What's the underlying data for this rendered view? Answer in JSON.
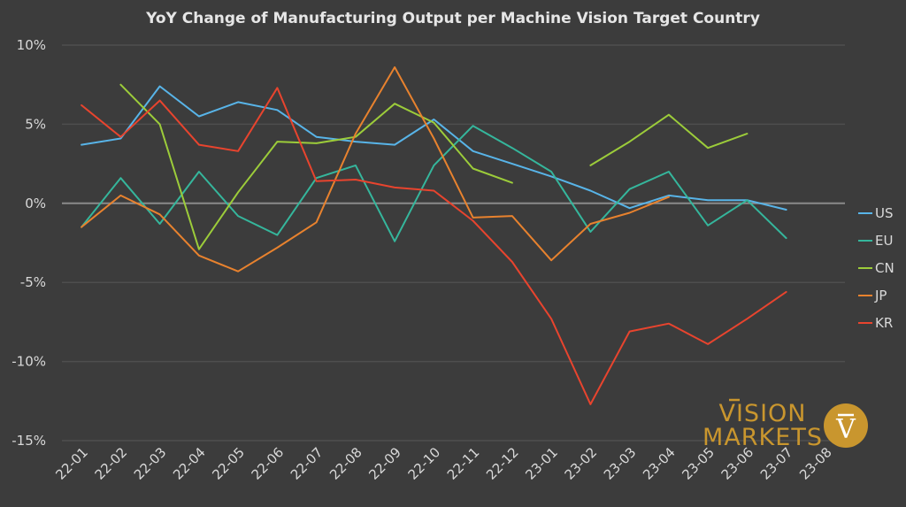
{
  "chart_data": {
    "type": "line",
    "title": "YoY Change of Manufacturing Output per Machine Vision Target Country",
    "xlabel": "",
    "ylabel": "",
    "ylim": [
      -15,
      10
    ],
    "y_ticks": [
      10,
      5,
      0,
      -5,
      -10,
      -15
    ],
    "y_tick_labels": [
      "10%",
      "5%",
      "0%",
      "-5%",
      "-10%",
      "-15%"
    ],
    "categories": [
      "22-01",
      "22-02",
      "22-03",
      "22-04",
      "22-05",
      "22-06",
      "22-07",
      "22-08",
      "22-09",
      "22-10",
      "22-11",
      "22-12",
      "23-01",
      "23-02",
      "23-03",
      "23-04",
      "23-05",
      "23-06",
      "23-07",
      "23-08"
    ],
    "legend_position": "right",
    "grid": "horizontal",
    "series": [
      {
        "name": "US",
        "color": "#58b4e8",
        "values": [
          3.7,
          4.1,
          7.4,
          5.5,
          6.4,
          5.9,
          4.2,
          3.9,
          3.7,
          5.3,
          3.3,
          2.5,
          1.7,
          0.8,
          -0.3,
          0.5,
          0.2,
          0.2,
          -0.4,
          null
        ]
      },
      {
        "name": "EU",
        "color": "#35b69c",
        "values": [
          -1.5,
          1.6,
          -1.3,
          2.0,
          -0.8,
          -2.0,
          1.6,
          2.4,
          -2.4,
          2.4,
          4.9,
          3.5,
          2.0,
          -1.8,
          0.9,
          2.0,
          -1.4,
          0.2,
          -2.2,
          null
        ]
      },
      {
        "name": "CN",
        "color": "#9ccc3a",
        "values": [
          null,
          7.5,
          5.0,
          -2.9,
          0.7,
          3.9,
          3.8,
          4.2,
          6.3,
          5.1,
          2.2,
          1.3,
          null,
          2.4,
          3.9,
          5.6,
          3.5,
          4.4,
          null,
          null
        ]
      },
      {
        "name": "JP",
        "color": "#e8822e",
        "values": [
          -1.5,
          0.5,
          -0.7,
          -3.3,
          -4.3,
          -2.8,
          -1.2,
          4.4,
          8.6,
          4.1,
          -0.9,
          -0.8,
          -3.6,
          -1.3,
          -0.6,
          0.4,
          null,
          null,
          null,
          null
        ]
      },
      {
        "name": "KR",
        "color": "#e8442e",
        "values": [
          6.2,
          4.2,
          6.5,
          3.7,
          3.3,
          7.3,
          1.4,
          1.5,
          1.0,
          0.8,
          -1.1,
          -3.7,
          -7.3,
          -12.7,
          -8.1,
          -7.6,
          -8.9,
          -7.3,
          -5.6,
          null
        ]
      }
    ]
  },
  "logo": {
    "line1": "VISION",
    "line2": "MARKETS",
    "mark": "V",
    "color": "#c9962e"
  }
}
